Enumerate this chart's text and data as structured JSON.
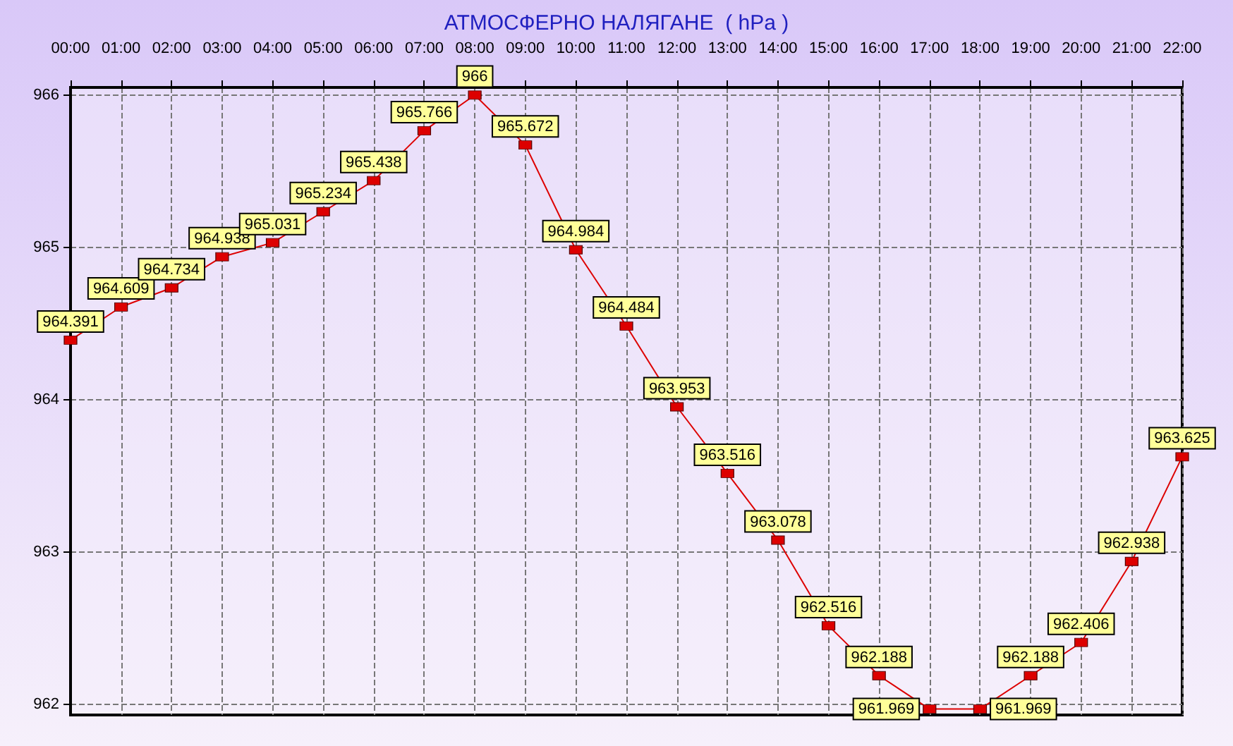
{
  "chart_data": {
    "type": "line",
    "title": "АТМОСФЕРНО НАЛЯГАНЕ  ( hPa )",
    "categories": [
      "00:00",
      "01:00",
      "02:00",
      "03:00",
      "04:00",
      "05:00",
      "06:00",
      "07:00",
      "08:00",
      "09:00",
      "10:00",
      "11:00",
      "12:00",
      "13:00",
      "14:00",
      "15:00",
      "16:00",
      "17:00",
      "18:00",
      "19:00",
      "20:00",
      "21:00",
      "22:00"
    ],
    "series": [
      {
        "color": "#dd0000",
        "values": [
          964.391,
          964.609,
          964.734,
          964.938,
          965.031,
          965.234,
          965.438,
          965.766,
          966,
          965.672,
          964.984,
          964.484,
          963.953,
          963.516,
          963.078,
          962.516,
          962.188,
          961.969,
          961.969,
          962.188,
          962.406,
          962.938,
          963.625
        ]
      }
    ],
    "ylim": [
      961.93,
      966.05
    ],
    "yticks": [
      962,
      963,
      964,
      965,
      966
    ],
    "grid": true,
    "marker": "square",
    "line_style": "solid",
    "data_labels": true
  }
}
